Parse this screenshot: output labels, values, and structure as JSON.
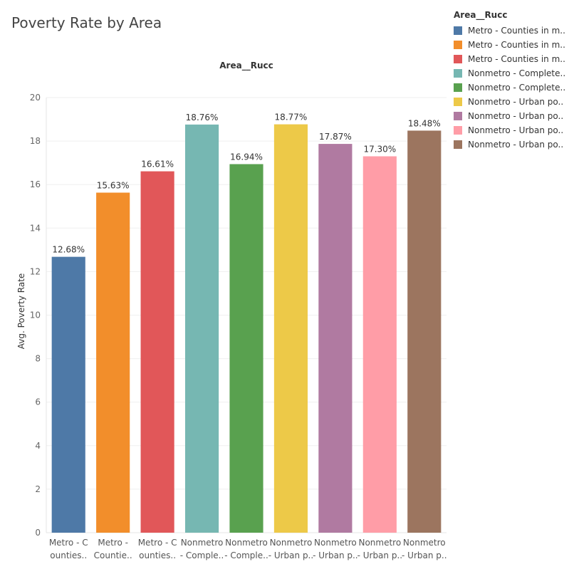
{
  "title": "Poverty Rate by Area",
  "legend": {
    "title": "Area__Rucc",
    "items": [
      {
        "label": "Metro - Counties in m..",
        "color": "#4e79a7"
      },
      {
        "label": "Metro - Counties in m..",
        "color": "#f28e2b"
      },
      {
        "label": "Metro - Counties in m..",
        "color": "#e15759"
      },
      {
        "label": "Nonmetro - Complete..",
        "color": "#76b7b2"
      },
      {
        "label": "Nonmetro - Complete..",
        "color": "#59a14f"
      },
      {
        "label": "Nonmetro - Urban po..",
        "color": "#edc948"
      },
      {
        "label": "Nonmetro - Urban po..",
        "color": "#b07aa1"
      },
      {
        "label": "Nonmetro - Urban po..",
        "color": "#ff9da7"
      },
      {
        "label": "Nonmetro - Urban po..",
        "color": "#9c755f"
      }
    ]
  },
  "chart_data": {
    "type": "bar",
    "column_header": "Area__Rucc",
    "ylabel": "Avg. Poverty Rate",
    "ylim": [
      0,
      20
    ],
    "yticks": [
      0,
      2,
      4,
      6,
      8,
      10,
      12,
      14,
      16,
      18,
      20
    ],
    "grid": true,
    "legend_position": "top-right",
    "categories": [
      [
        "Metro - C",
        "ounties.."
      ],
      [
        "Metro -",
        "Countie.."
      ],
      [
        "Metro - C",
        "ounties.."
      ],
      [
        "Nonmetro",
        "- Comple.."
      ],
      [
        "Nonmetro",
        "- Comple.."
      ],
      [
        "Nonmetro",
        "- Urban p.."
      ],
      [
        "Nonmetro",
        "- Urban p.."
      ],
      [
        "Nonmetro",
        "- Urban p.."
      ],
      [
        "Nonmetro",
        "- Urban p.."
      ]
    ],
    "values": [
      12.68,
      15.63,
      16.61,
      18.76,
      16.94,
      18.77,
      17.87,
      17.3,
      18.48
    ],
    "value_labels": [
      "12.68%",
      "15.63%",
      "16.61%",
      "18.76%",
      "16.94%",
      "18.77%",
      "17.87%",
      "17.30%",
      "18.48%"
    ],
    "colors": [
      "#4e79a7",
      "#f28e2b",
      "#e15759",
      "#76b7b2",
      "#59a14f",
      "#edc948",
      "#b07aa1",
      "#ff9da7",
      "#9c755f"
    ]
  }
}
